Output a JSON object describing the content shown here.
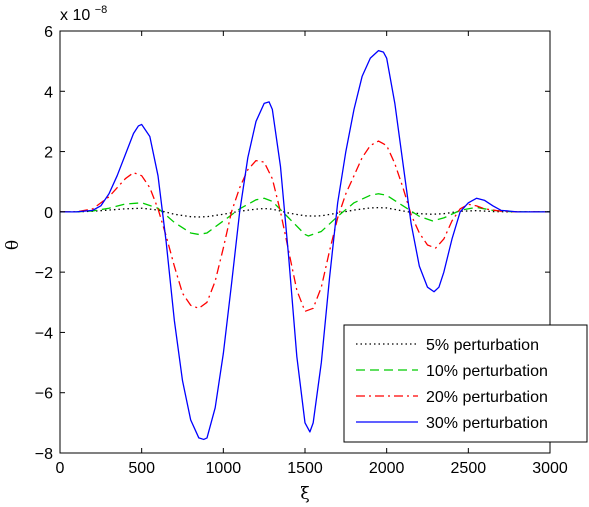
{
  "chart_data": {
    "type": "line",
    "title": "",
    "xlabel": "ξ",
    "ylabel": "θ",
    "exponent_label": "x 10",
    "exponent_power": "−8",
    "xlim": [
      0,
      3000
    ],
    "ylim": [
      -8,
      6
    ],
    "xticks": [
      0,
      500,
      1000,
      1500,
      2000,
      2500,
      3000
    ],
    "yticks": [
      -8,
      -6,
      -4,
      -2,
      0,
      2,
      4,
      6
    ],
    "xtick_labels": [
      "0",
      "500",
      "1000",
      "1500",
      "2000",
      "2500",
      "3000"
    ],
    "ytick_labels": [
      "−8",
      "−6",
      "−4",
      "−2",
      "0",
      "2",
      "4",
      "6"
    ],
    "grid": false,
    "legend_position": "bottom-right",
    "series": [
      {
        "name": "5% perturbation",
        "color": "#000000",
        "dash": "dotted",
        "x": [
          0,
          100,
          200,
          300,
          400,
          500,
          600,
          700,
          800,
          850,
          900,
          1000,
          1100,
          1200,
          1250,
          1300,
          1400,
          1500,
          1550,
          1600,
          1700,
          1800,
          1900,
          1950,
          2000,
          2100,
          2200,
          2280,
          2350,
          2450,
          2550,
          2650,
          2750,
          2850,
          3000
        ],
        "y": [
          0,
          0,
          0.02,
          0.06,
          0.1,
          0.12,
          0.06,
          -0.08,
          -0.16,
          -0.17,
          -0.16,
          -0.08,
          0.02,
          0.09,
          0.11,
          0.09,
          -0.04,
          -0.13,
          -0.14,
          -0.13,
          -0.04,
          0.06,
          0.13,
          0.14,
          0.13,
          0.03,
          -0.06,
          -0.08,
          -0.06,
          0.02,
          0.04,
          0.01,
          0,
          0,
          0
        ]
      },
      {
        "name": "10% perturbation",
        "color": "#00cc00",
        "dash": "dashed",
        "x": [
          0,
          100,
          200,
          300,
          400,
          500,
          600,
          700,
          800,
          850,
          900,
          1000,
          1100,
          1200,
          1250,
          1300,
          1400,
          1500,
          1520,
          1600,
          1700,
          1800,
          1900,
          1950,
          2000,
          2100,
          2200,
          2280,
          2350,
          2450,
          2550,
          2650,
          2750,
          2850,
          3000
        ],
        "y": [
          0,
          0,
          0.03,
          0.12,
          0.26,
          0.3,
          0.12,
          -0.35,
          -0.7,
          -0.75,
          -0.7,
          -0.3,
          0.1,
          0.4,
          0.45,
          0.35,
          -0.2,
          -0.75,
          -0.8,
          -0.65,
          -0.15,
          0.3,
          0.55,
          0.6,
          0.55,
          0.2,
          -0.15,
          -0.3,
          -0.2,
          0.05,
          0.15,
          0.05,
          0.01,
          0,
          0
        ]
      },
      {
        "name": "20% perturbation",
        "color": "#ff0000",
        "dash": "dashdot",
        "x": [
          0,
          100,
          200,
          300,
          350,
          400,
          450,
          500,
          550,
          600,
          650,
          700,
          750,
          800,
          850,
          900,
          950,
          1000,
          1050,
          1100,
          1150,
          1200,
          1250,
          1300,
          1350,
          1400,
          1450,
          1500,
          1550,
          1600,
          1650,
          1700,
          1750,
          1800,
          1850,
          1900,
          1950,
          2000,
          2050,
          2100,
          2150,
          2200,
          2250,
          2300,
          2350,
          2400,
          2450,
          2500,
          2550,
          2600,
          2700,
          2800,
          2900,
          3000
        ],
        "y": [
          0,
          0,
          0.1,
          0.5,
          0.8,
          1.1,
          1.3,
          1.2,
          0.8,
          0.1,
          -0.8,
          -1.8,
          -2.7,
          -3.1,
          -3.2,
          -3.0,
          -2.3,
          -1.2,
          0,
          0.8,
          1.4,
          1.7,
          1.65,
          1.1,
          0,
          -1.3,
          -2.6,
          -3.3,
          -3.2,
          -2.5,
          -1.3,
          -0.2,
          0.6,
          1.2,
          1.8,
          2.2,
          2.35,
          2.2,
          1.6,
          0.8,
          -0.1,
          -0.7,
          -1.1,
          -1.2,
          -0.9,
          -0.3,
          0.1,
          0.25,
          0.2,
          0.1,
          0.02,
          0,
          0,
          0
        ]
      },
      {
        "name": "30% perturbation",
        "color": "#0000ff",
        "dash": "solid",
        "x": [
          0,
          100,
          200,
          250,
          300,
          350,
          400,
          450,
          480,
          500,
          550,
          600,
          650,
          700,
          750,
          800,
          850,
          880,
          900,
          950,
          1000,
          1050,
          1100,
          1150,
          1200,
          1250,
          1280,
          1300,
          1350,
          1400,
          1450,
          1500,
          1530,
          1550,
          1600,
          1650,
          1700,
          1750,
          1800,
          1850,
          1900,
          1950,
          1980,
          2000,
          2050,
          2100,
          2150,
          2200,
          2250,
          2290,
          2320,
          2350,
          2400,
          2450,
          2500,
          2550,
          2600,
          2650,
          2700,
          2800,
          2900,
          3000
        ],
        "y": [
          0,
          0,
          0.05,
          0.2,
          0.6,
          1.2,
          1.9,
          2.6,
          2.85,
          2.9,
          2.5,
          1.2,
          -1.0,
          -3.6,
          -5.6,
          -6.9,
          -7.5,
          -7.55,
          -7.5,
          -6.5,
          -4.7,
          -2.4,
          0,
          1.8,
          3.0,
          3.6,
          3.65,
          3.4,
          1.5,
          -1.5,
          -4.8,
          -7.0,
          -7.3,
          -7.0,
          -5.0,
          -2.2,
          0.3,
          2.0,
          3.4,
          4.5,
          5.1,
          5.35,
          5.3,
          5.1,
          3.6,
          1.6,
          -0.4,
          -1.8,
          -2.5,
          -2.65,
          -2.5,
          -2.0,
          -0.9,
          0,
          0.3,
          0.45,
          0.38,
          0.2,
          0.05,
          0,
          0,
          0
        ]
      }
    ]
  }
}
